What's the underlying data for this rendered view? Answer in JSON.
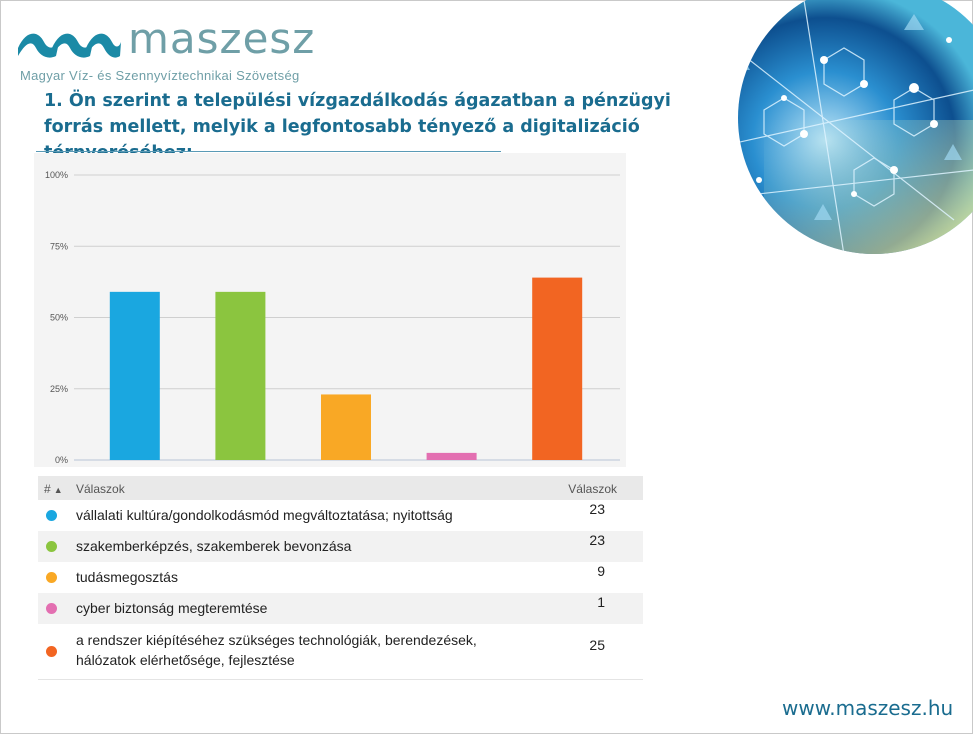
{
  "header": {
    "brand_name": "maszesz",
    "brand_subtitle": "Magyar Víz- és Szennyvíztechnikai Szövetség",
    "title": "1. Ön szerint a települési vízgazdálkodás ágazatban a pénzügyi forrás mellett, melyik a legfontosabb tényező a digitalizáció térnyeréséhez:"
  },
  "colors": {
    "brand": "#1a6c8f",
    "logo": "#6f9fa7",
    "blue": "#1aa7e0",
    "green": "#8bc53f",
    "yellow": "#f9a825",
    "pink": "#e36fb1",
    "orange": "#f26522"
  },
  "chart_data": {
    "type": "bar",
    "categories": [
      "vállalati kultúra/gondolkodásmód megváltoztatása; nyitottság",
      "szakemberképzés, szakemberek bevonzása",
      "tudásmegosztás",
      "cyber biztonság megteremtése",
      "a rendszer kiépítéséhez szükséges technológiák, berendezések, hálózatok elérhetősége, fejlesztése"
    ],
    "values": [
      59,
      59,
      23,
      2.5,
      64
    ],
    "colors": [
      "#1aa7e0",
      "#8bc53f",
      "#f9a825",
      "#e36fb1",
      "#f26522"
    ],
    "yticks": [
      "0%",
      "25%",
      "50%",
      "75%",
      "100%"
    ],
    "ylim": [
      0,
      100
    ],
    "grid": true
  },
  "table": {
    "col_hash": "#",
    "col_answers": "Válaszok",
    "col_count": "Válaszok",
    "rows": [
      {
        "label": "vállalati kultúra/gondolkodásmód megváltoztatása; nyitottság",
        "count": "23",
        "color": "#1aa7e0"
      },
      {
        "label": "szakemberképzés, szakemberek bevonzása",
        "count": "23",
        "color": "#8bc53f"
      },
      {
        "label": "tudásmegosztás",
        "count": "9",
        "color": "#f9a825"
      },
      {
        "label": "cyber biztonság megteremtése",
        "count": "1",
        "color": "#e36fb1"
      },
      {
        "label": "a rendszer kiépítéséhez szükséges technológiák, berendezések, hálózatok elérhetősége, fejlesztése",
        "count": "25",
        "color": "#f26522"
      }
    ]
  },
  "footer": {
    "website": "www.maszesz.hu"
  }
}
